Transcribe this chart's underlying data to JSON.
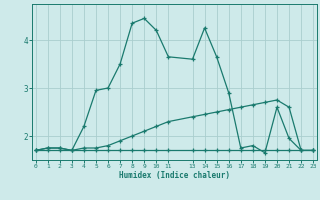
{
  "xlabel": "Humidex (Indice chaleur)",
  "ylabel": "",
  "background_color": "#ceeaea",
  "grid_color": "#aacece",
  "line_color": "#1a7a6e",
  "x_values": [
    0,
    1,
    2,
    3,
    4,
    5,
    6,
    7,
    8,
    9,
    10,
    11,
    13,
    14,
    15,
    16,
    17,
    18,
    19,
    20,
    21,
    22,
    23
  ],
  "curve1_y": [
    1.7,
    1.75,
    1.75,
    1.7,
    2.2,
    2.95,
    3.0,
    3.5,
    4.35,
    4.45,
    4.2,
    3.65,
    3.6,
    4.25,
    3.65,
    2.9,
    1.75,
    1.8,
    1.65,
    2.6,
    1.95,
    1.7,
    1.7
  ],
  "curve2_y": [
    1.7,
    1.75,
    1.75,
    1.7,
    1.75,
    1.75,
    1.8,
    1.9,
    2.0,
    2.1,
    2.2,
    2.3,
    2.4,
    2.45,
    2.5,
    2.55,
    2.6,
    2.65,
    2.7,
    2.75,
    2.6,
    1.7,
    1.7
  ],
  "curve3_y": [
    1.7,
    1.7,
    1.7,
    1.7,
    1.7,
    1.7,
    1.7,
    1.7,
    1.7,
    1.7,
    1.7,
    1.7,
    1.7,
    1.7,
    1.7,
    1.7,
    1.7,
    1.7,
    1.7,
    1.7,
    1.7,
    1.7,
    1.7
  ],
  "ylim": [
    1.5,
    4.75
  ],
  "yticks": [
    2,
    3,
    4
  ],
  "xtick_labels": [
    "0",
    "1",
    "2",
    "3",
    "4",
    "5",
    "6",
    "7",
    "8",
    "9",
    "1011",
    "",
    "1314",
    "1516",
    "1718",
    "1920",
    "2122",
    "23"
  ],
  "xlim": [
    -0.3,
    23.3
  ]
}
